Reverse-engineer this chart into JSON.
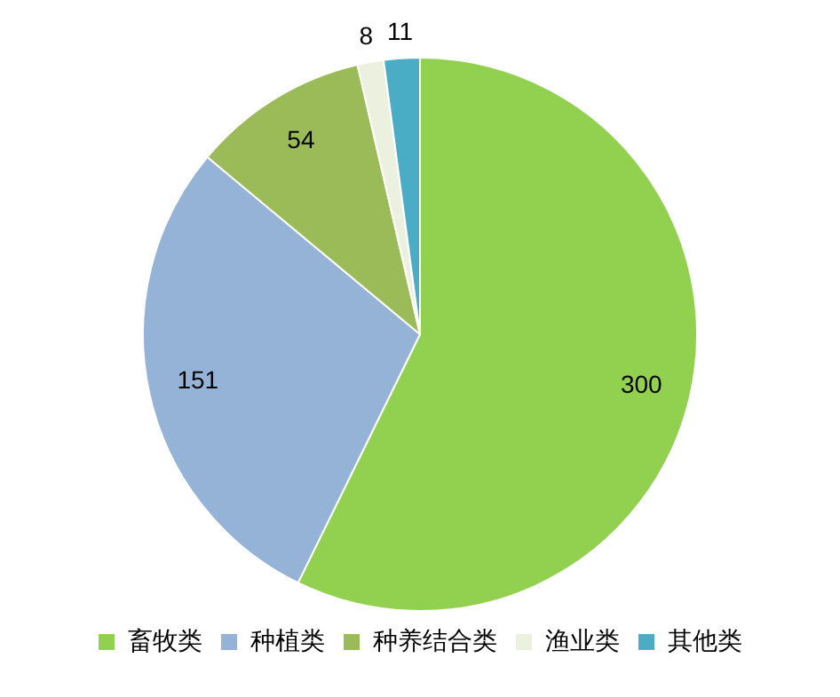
{
  "chart_data": {
    "type": "pie",
    "categories": [
      "畜牧类",
      "种植类",
      "种养结合类",
      "渔业类",
      "其他类"
    ],
    "values": [
      300,
      151,
      54,
      8,
      11
    ],
    "colors": [
      "#92d050",
      "#95b3d7",
      "#9bbb59",
      "#ebf1de",
      "#4bacc6"
    ],
    "data_labels": true,
    "legend": "bottom"
  }
}
